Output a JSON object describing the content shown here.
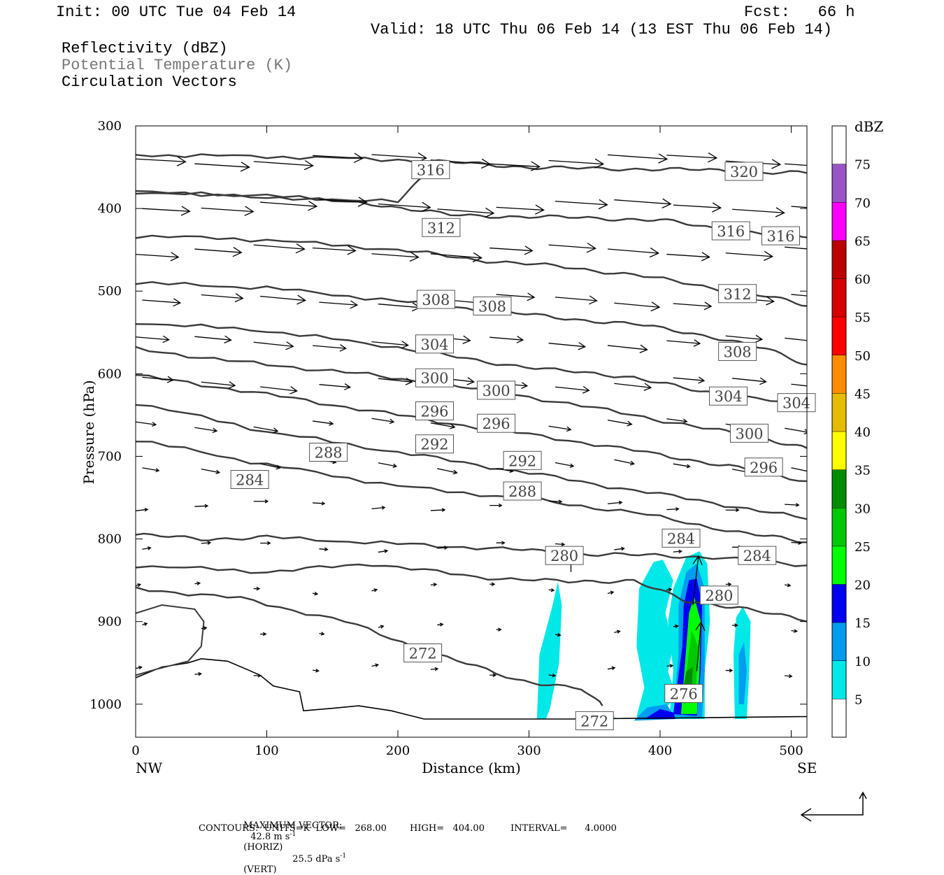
{
  "header": {
    "init": "Init: 00 UTC Tue 04 Feb 14",
    "fcst": "Fcst:   66 h",
    "valid": "Valid: 18 UTC Thu 06 Feb 14 (13 EST Thu 06 Feb 14)",
    "field1": "Reflectivity (dBZ)",
    "field2": "Potential Temperature (K)",
    "field3": "Circulation Vectors"
  },
  "colors": {
    "contour": "#3a3a3a",
    "reflectivity": [
      "#ffffff",
      "#00e8e8",
      "#009cf0",
      "#0000f0",
      "#00ff00",
      "#00c800",
      "#008c00",
      "#ffff00",
      "#e6bc00",
      "#ff8c00",
      "#ff0000",
      "#d60000",
      "#bc0000",
      "#ff00ff",
      "#9955c8",
      "#ffffff"
    ]
  },
  "chart_data": {
    "type": "cross-section",
    "xlabel": "Distance (km)",
    "ylabel": "Pressure (hPa)",
    "x_ticks": [
      "0",
      "100",
      "200",
      "300",
      "400",
      "500"
    ],
    "y_ticks": [
      "300",
      "400",
      "500",
      "600",
      "700",
      "800",
      "900",
      "1000"
    ],
    "xlim": [
      0,
      512
    ],
    "ylim": [
      1040,
      300
    ],
    "x_end_labels": {
      "left": "NW",
      "right": "SE"
    },
    "colorbar": {
      "unit": "dBZ",
      "levels": [
        "5",
        "10",
        "15",
        "20",
        "25",
        "30",
        "35",
        "40",
        "45",
        "50",
        "55",
        "60",
        "65",
        "70",
        "75"
      ]
    },
    "theta_contours": [
      {
        "value": "320",
        "label": "320",
        "x": 464,
        "p": 355,
        "points": [
          [
            0,
            335
          ],
          [
            100,
            337
          ],
          [
            200,
            341
          ],
          [
            250,
            345
          ],
          [
            300,
            350
          ],
          [
            350,
            352
          ],
          [
            400,
            352
          ],
          [
            460,
            355
          ],
          [
            512,
            357
          ]
        ]
      },
      {
        "value": "316",
        "label": "316",
        "x": 225,
        "p": 353,
        "points": [
          [
            0,
            380
          ],
          [
            100,
            385
          ],
          [
            200,
            392
          ],
          [
            225,
            353
          ],
          [
            225,
            353
          ]
        ]
      },
      {
        "value": "316",
        "label": "316",
        "x": 454,
        "p": 427,
        "points": [
          [
            0,
            380
          ],
          [
            100,
            386
          ],
          [
            180,
            394
          ],
          [
            240,
            408
          ],
          [
            300,
            410
          ],
          [
            360,
            412
          ],
          [
            400,
            414
          ],
          [
            440,
            424
          ],
          [
            480,
            430
          ],
          [
            512,
            435
          ]
        ]
      },
      {
        "value": "316",
        "label": "316",
        "x": 492,
        "p": 433,
        "points": []
      },
      {
        "value": "312",
        "label": "312",
        "x": 233,
        "p": 423,
        "points": [
          [
            0,
            433
          ],
          [
            100,
            438
          ],
          [
            200,
            450
          ],
          [
            260,
            462
          ],
          [
            320,
            470
          ],
          [
            380,
            480
          ],
          [
            440,
            496
          ],
          [
            480,
            506
          ],
          [
            512,
            518
          ]
        ]
      },
      {
        "value": "312",
        "label": "312",
        "x": 459,
        "p": 503,
        "points": []
      },
      {
        "value": "308",
        "label": "308",
        "x": 229,
        "p": 510,
        "points": [
          [
            0,
            490
          ],
          [
            100,
            496
          ],
          [
            200,
            512
          ],
          [
            260,
            522
          ],
          [
            320,
            532
          ],
          [
            380,
            540
          ],
          [
            440,
            555
          ],
          [
            480,
            570
          ],
          [
            512,
            589
          ]
        ]
      },
      {
        "value": "308",
        "label": "308",
        "x": 272,
        "p": 518,
        "points": []
      },
      {
        "value": "308",
        "label": "308",
        "x": 459,
        "p": 573,
        "points": []
      },
      {
        "value": "304",
        "label": "304",
        "x": 228,
        "p": 564,
        "points": [
          [
            0,
            538
          ],
          [
            100,
            548
          ],
          [
            200,
            568
          ],
          [
            260,
            584
          ],
          [
            320,
            596
          ],
          [
            380,
            604
          ],
          [
            430,
            622
          ],
          [
            480,
            630
          ],
          [
            512,
            642
          ]
        ]
      },
      {
        "value": "304",
        "label": "304",
        "x": 452,
        "p": 627,
        "points": []
      },
      {
        "value": "304",
        "label": "304",
        "x": 504,
        "p": 635,
        "points": []
      },
      {
        "value": "300",
        "label": "300",
        "x": 228,
        "p": 605,
        "points": [
          [
            0,
            570
          ],
          [
            80,
            586
          ],
          [
            160,
            598
          ],
          [
            230,
            612
          ],
          [
            300,
            628
          ],
          [
            380,
            650
          ],
          [
            440,
            668
          ],
          [
            480,
            678
          ],
          [
            512,
            690
          ]
        ]
      },
      {
        "value": "300",
        "label": "300",
        "x": 275,
        "p": 620,
        "points": []
      },
      {
        "value": "300",
        "label": "300",
        "x": 468,
        "p": 672,
        "points": []
      },
      {
        "value": "296",
        "label": "296",
        "x": 228,
        "p": 645,
        "points": [
          [
            0,
            602
          ],
          [
            80,
            620
          ],
          [
            160,
            640
          ],
          [
            240,
            660
          ],
          [
            320,
            678
          ],
          [
            400,
            698
          ],
          [
            460,
            714
          ],
          [
            512,
            730
          ]
        ]
      },
      {
        "value": "296",
        "label": "296",
        "x": 275,
        "p": 660,
        "points": []
      },
      {
        "value": "296",
        "label": "296",
        "x": 479,
        "p": 713,
        "points": []
      },
      {
        "value": "292",
        "label": "292",
        "x": 228,
        "p": 685,
        "points": [
          [
            0,
            635
          ],
          [
            100,
            670
          ],
          [
            200,
            695
          ],
          [
            280,
            715
          ],
          [
            360,
            736
          ],
          [
            440,
            756
          ],
          [
            512,
            776
          ]
        ]
      },
      {
        "value": "292",
        "label": "292",
        "x": 295,
        "p": 705,
        "points": []
      },
      {
        "value": "288",
        "label": "288",
        "x": 147,
        "p": 695,
        "points": [
          [
            0,
            680
          ],
          [
            100,
            710
          ],
          [
            200,
            736
          ],
          [
            300,
            752
          ],
          [
            380,
            768
          ],
          [
            460,
            792
          ],
          [
            512,
            804
          ]
        ]
      },
      {
        "value": "288",
        "label": "288",
        "x": 295,
        "p": 742,
        "points": []
      },
      {
        "value": "284",
        "label": "284",
        "x": 87,
        "p": 728,
        "points": [
          [
            0,
            795
          ],
          [
            50,
            800
          ],
          [
            100,
            798
          ],
          [
            200,
            806
          ],
          [
            280,
            812
          ],
          [
            340,
            818
          ],
          [
            390,
            820
          ],
          [
            440,
            822
          ],
          [
            512,
            832
          ]
        ]
      },
      {
        "value": "284",
        "label": "284",
        "x": 416,
        "p": 799,
        "points": []
      },
      {
        "value": "284",
        "label": "284",
        "x": 474,
        "p": 820,
        "points": []
      },
      {
        "value": "280",
        "label": "280",
        "x": 327,
        "p": 820,
        "points": [
          [
            0,
            832
          ],
          [
            100,
            840
          ],
          [
            180,
            830
          ],
          [
            260,
            846
          ],
          [
            330,
            852
          ],
          [
            380,
            850
          ],
          [
            420,
            876
          ],
          [
            460,
            882
          ],
          [
            512,
            900
          ]
        ]
      },
      {
        "value": "280",
        "label": "280",
        "x": 445,
        "p": 868,
        "points": []
      },
      {
        "value": "276",
        "label": "276",
        "x": 418,
        "p": 987,
        "points": []
      },
      {
        "value": "272",
        "label": "272",
        "x": 219,
        "p": 938,
        "points": [
          [
            0,
            860
          ],
          [
            80,
            872
          ],
          [
            160,
            900
          ],
          [
            230,
            940
          ],
          [
            290,
            970
          ],
          [
            340,
            982
          ],
          [
            356,
            1002
          ]
        ]
      },
      {
        "value": "272",
        "label": "272",
        "x": 350,
        "p": 1020,
        "points": []
      }
    ],
    "summary": {
      "max_vector_label": "MAXIMUM VECTOR:",
      "max_horiz": "42.8 m s",
      "max_horiz_unit": "(HORIZ)",
      "max_vert": "25.5 dPa s",
      "max_vert_unit": "(VERT)",
      "contours_line": "CONTOURS:  UNITS=K  LOW=   268.00        HIGH=   404.00         INTERVAL=      4.0000"
    }
  }
}
